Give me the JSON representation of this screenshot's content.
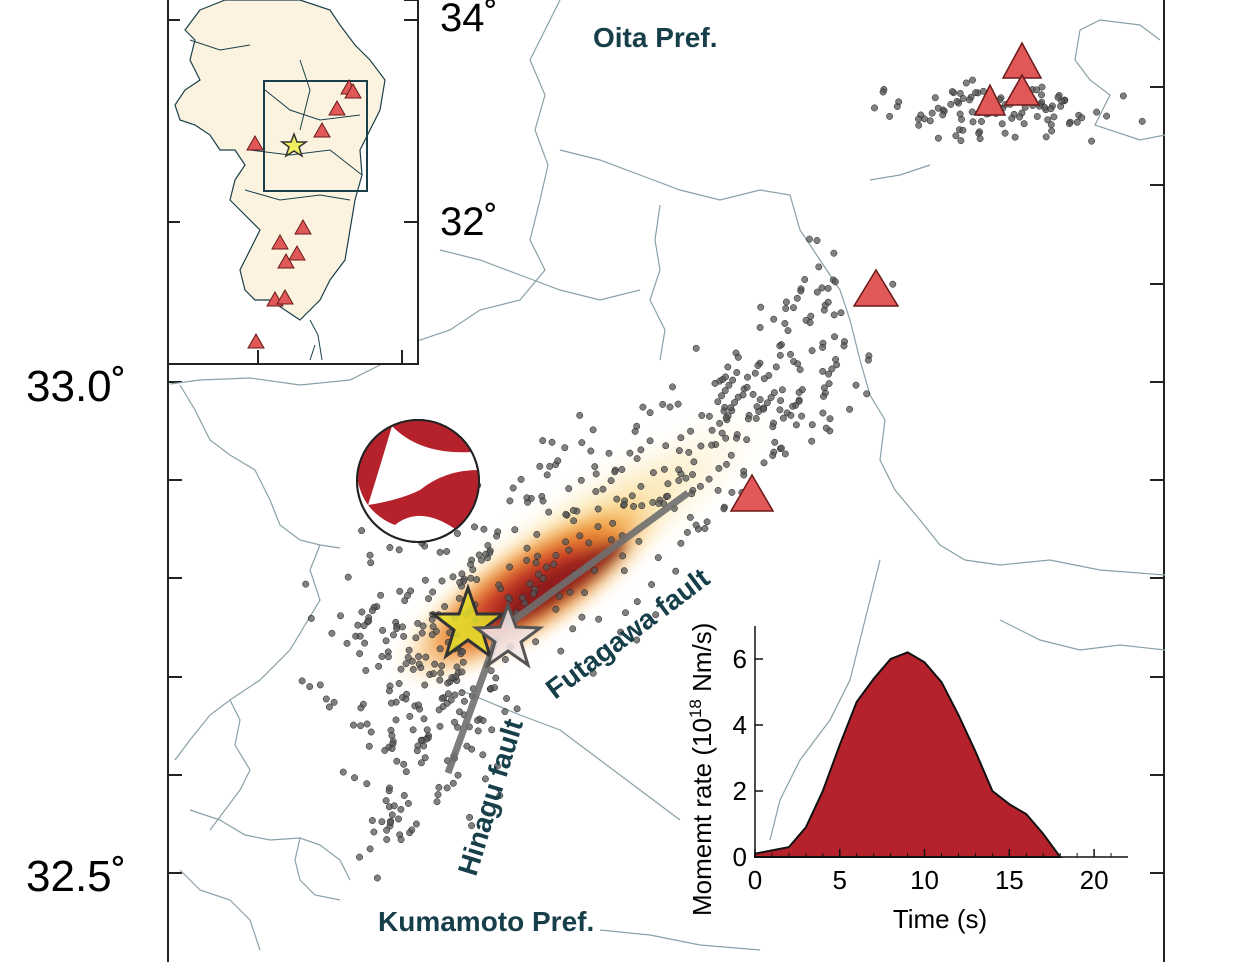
{
  "map": {
    "latitude_labels": [
      "33.0˚",
      "32.5˚"
    ],
    "prefecture_labels": {
      "north": "Oita Pref.",
      "south": "Kumamoto Pref."
    },
    "fault_labels": {
      "hinagu": "Hinagu fault",
      "futagawa": "Futagawa fault"
    },
    "colors": {
      "volcano_fill": "#e05858",
      "slip_core": "#8b1a1a",
      "slip_outer": "#f5c542",
      "aftershock": "#555555",
      "fault_trace": "#6f6f6f",
      "coast_line": "#8aa0a8",
      "label_text": "#173f4a"
    }
  },
  "inset": {
    "latitude_labels": [
      "34˚",
      "32˚"
    ],
    "land_color": "#fbf3e0"
  },
  "focal_mechanism": {
    "color": "#b5222c"
  },
  "stf": {
    "ylabel_prefix": "Momemt rate (10",
    "ylabel_exp": "18",
    "ylabel_suffix": " Nm/s)",
    "xlabel": "Time (s)",
    "xticks": [
      "0",
      "5",
      "10",
      "15",
      "20"
    ],
    "yticks": [
      "0",
      "2",
      "4",
      "6"
    ]
  },
  "chart_data": {
    "type": "area",
    "xlabel": "Time (s)",
    "ylabel": "Momemt rate (10^18 Nm/s)",
    "xlim": [
      0,
      22
    ],
    "ylim": [
      0,
      7
    ],
    "x": [
      0,
      1,
      2,
      3,
      4,
      5,
      6,
      7,
      8,
      9,
      10,
      11,
      12,
      13,
      14,
      15,
      16,
      17,
      18
    ],
    "values": [
      0.1,
      0.2,
      0.3,
      0.9,
      2.0,
      3.4,
      4.7,
      5.4,
      6.0,
      6.2,
      5.9,
      5.3,
      4.3,
      3.2,
      2.0,
      1.6,
      1.3,
      0.7,
      0.0
    ],
    "color": "#b5222c",
    "grid": false
  }
}
